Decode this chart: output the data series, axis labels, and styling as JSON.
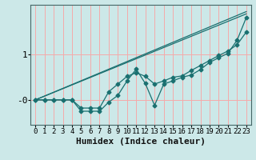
{
  "xlabel": "Humidex (Indice chaleur)",
  "bg_color": "#cce8e8",
  "grid_color": "#f5aaaa",
  "line_color": "#1a7070",
  "xlim": [
    -0.5,
    23.5
  ],
  "ylim": [
    -0.55,
    2.1
  ],
  "xticks": [
    0,
    1,
    2,
    3,
    4,
    5,
    6,
    7,
    8,
    9,
    10,
    11,
    12,
    13,
    14,
    15,
    16,
    17,
    18,
    19,
    20,
    21,
    22,
    23
  ],
  "ytick_vals": [
    0.0,
    1.0
  ],
  "ytick_labels": [
    "-0",
    "1"
  ],
  "series1_x": [
    0,
    1,
    2,
    3,
    4,
    5,
    6,
    7,
    8,
    9,
    10,
    11,
    12,
    13,
    14,
    15,
    16,
    17,
    18,
    19,
    20,
    21,
    22,
    23
  ],
  "series1_y": [
    0.0,
    0.0,
    0.0,
    0.0,
    0.0,
    -0.18,
    -0.18,
    -0.18,
    0.18,
    0.35,
    0.52,
    0.6,
    0.52,
    0.35,
    0.42,
    0.5,
    0.53,
    0.65,
    0.76,
    0.87,
    0.98,
    1.08,
    1.22,
    1.5
  ],
  "series2_x": [
    0,
    1,
    2,
    3,
    4,
    5,
    6,
    7,
    8,
    9,
    10,
    11,
    12,
    13,
    14,
    15,
    16,
    17,
    18,
    19,
    20,
    21,
    22,
    23
  ],
  "series2_y": [
    0.0,
    0.0,
    0.0,
    0.0,
    0.0,
    -0.25,
    -0.25,
    -0.25,
    -0.05,
    0.1,
    0.42,
    0.68,
    0.36,
    -0.12,
    0.35,
    0.42,
    0.5,
    0.55,
    0.67,
    0.83,
    0.93,
    1.03,
    1.32,
    1.82
  ],
  "line3": [
    0.0,
    1.95
  ],
  "line3_x": [
    0,
    23
  ],
  "line4": [
    0.0,
    1.9
  ],
  "line4_x": [
    0,
    23
  ],
  "font_size_xlabel": 8,
  "font_size_ytick": 8,
  "font_size_xtick": 6.5
}
